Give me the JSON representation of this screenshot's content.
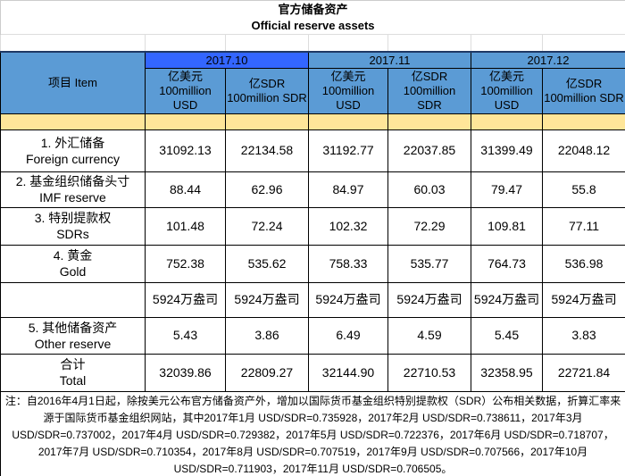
{
  "title_cn": "官方储备资产",
  "title_en": "Official reserve assets",
  "header": {
    "item": "项目  Item",
    "months": [
      "2017.10",
      "2017.11",
      "2017.12"
    ],
    "units": [
      [
        "亿美元",
        "100million",
        "USD"
      ],
      [
        "亿SDR",
        "100million SDR"
      ],
      [
        "亿美元",
        "100million",
        "USD"
      ],
      [
        "亿SDR",
        "100million",
        "SDR"
      ],
      [
        "亿美元",
        "100million",
        "USD"
      ],
      [
        "亿SDR",
        "100million SDR"
      ]
    ]
  },
  "rows": [
    {
      "cn": "1.  外汇储备",
      "en": "Foreign currency",
      "values": [
        "31092.13",
        "22134.58",
        "31192.77",
        "22037.85",
        "31399.49",
        "22048.12"
      ]
    },
    {
      "cn": "2.  基金组织储备头寸",
      "en": "IMF reserve",
      "values": [
        "88.44",
        "62.96",
        "84.97",
        "60.03",
        "79.47",
        "55.8"
      ]
    },
    {
      "cn": "3.  特别提款权",
      "en": "SDRs",
      "values": [
        "101.48",
        "72.24",
        "102.32",
        "72.29",
        "109.81",
        "77.11"
      ]
    },
    {
      "cn": "4.  黄金",
      "en": "Gold",
      "values": [
        "752.38",
        "535.62",
        "758.33",
        "535.77",
        "764.73",
        "536.98"
      ]
    },
    {
      "cn": "",
      "en": "",
      "values": [
        "5924万盎司",
        "5924万盎司",
        "5924万盎司",
        "5924万盎司",
        "5924万盎司",
        "5924万盎司"
      ]
    },
    {
      "cn": "5.  其他储备资产",
      "en": "Other reserve",
      "values": [
        "5.43",
        "3.86",
        "6.49",
        "4.59",
        "5.45",
        "3.83"
      ]
    },
    {
      "cn": "合计",
      "en": "Total",
      "values": [
        "32039.86",
        "22809.27",
        "32144.90",
        "22710.53",
        "32358.95",
        "22721.84"
      ]
    }
  ],
  "note": "注：自2016年4月1日起，除按美元公布官方储备资产外，增加以国际货币基金组织特别提款权（SDR）公布相关数据，折算汇率来源于国际货币基金组织网站，其中2017年1月 USD/SDR=0.735928，2017年2月 USD/SDR=0.738611，2017年3月 USD/SDR=0.737002，2017年4月 USD/SDR=0.729382，2017年5月 USD/SDR=0.722376，2017年6月 USD/SDR=0.718707，2017年7月 USD/SDR=0.710354，2017年8月 USD/SDR=0.707519，2017年9月 USD/SDR=0.707566，2017年10月 USD/SDR=0.711903，2017年11月 USD/SDR=0.706505。",
  "colors": {
    "header_blue": "#5b9bd5",
    "selected_month": "#3366ff",
    "band_yellow": "#ffe699"
  }
}
